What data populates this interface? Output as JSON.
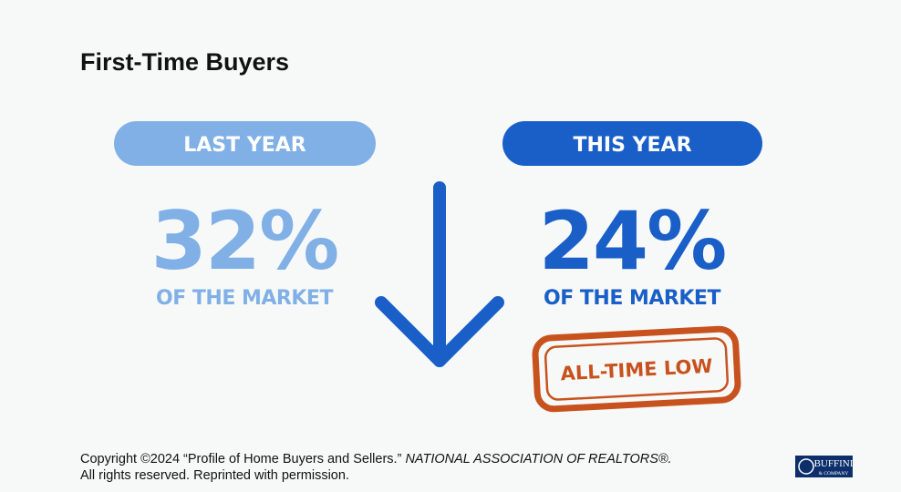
{
  "title": "First-Time Buyers",
  "last_year": {
    "label": "LAST YEAR",
    "value": "32%",
    "caption": "OF THE MARKET"
  },
  "this_year": {
    "label": "THIS YEAR",
    "value": "24%",
    "caption": "OF THE MARKET"
  },
  "stamp": "ALL-TIME LOW",
  "footer": {
    "line1": "Copyright ©2024 “Profile of Home Buyers and Sellers.” ",
    "source": "NATIONAL ASSOCIATION OF REALTORS®.",
    "line2": "All rights reserved. Reprinted with permission."
  },
  "logo": {
    "name": "BUFFINI",
    "sub": "& COMPANY"
  }
}
